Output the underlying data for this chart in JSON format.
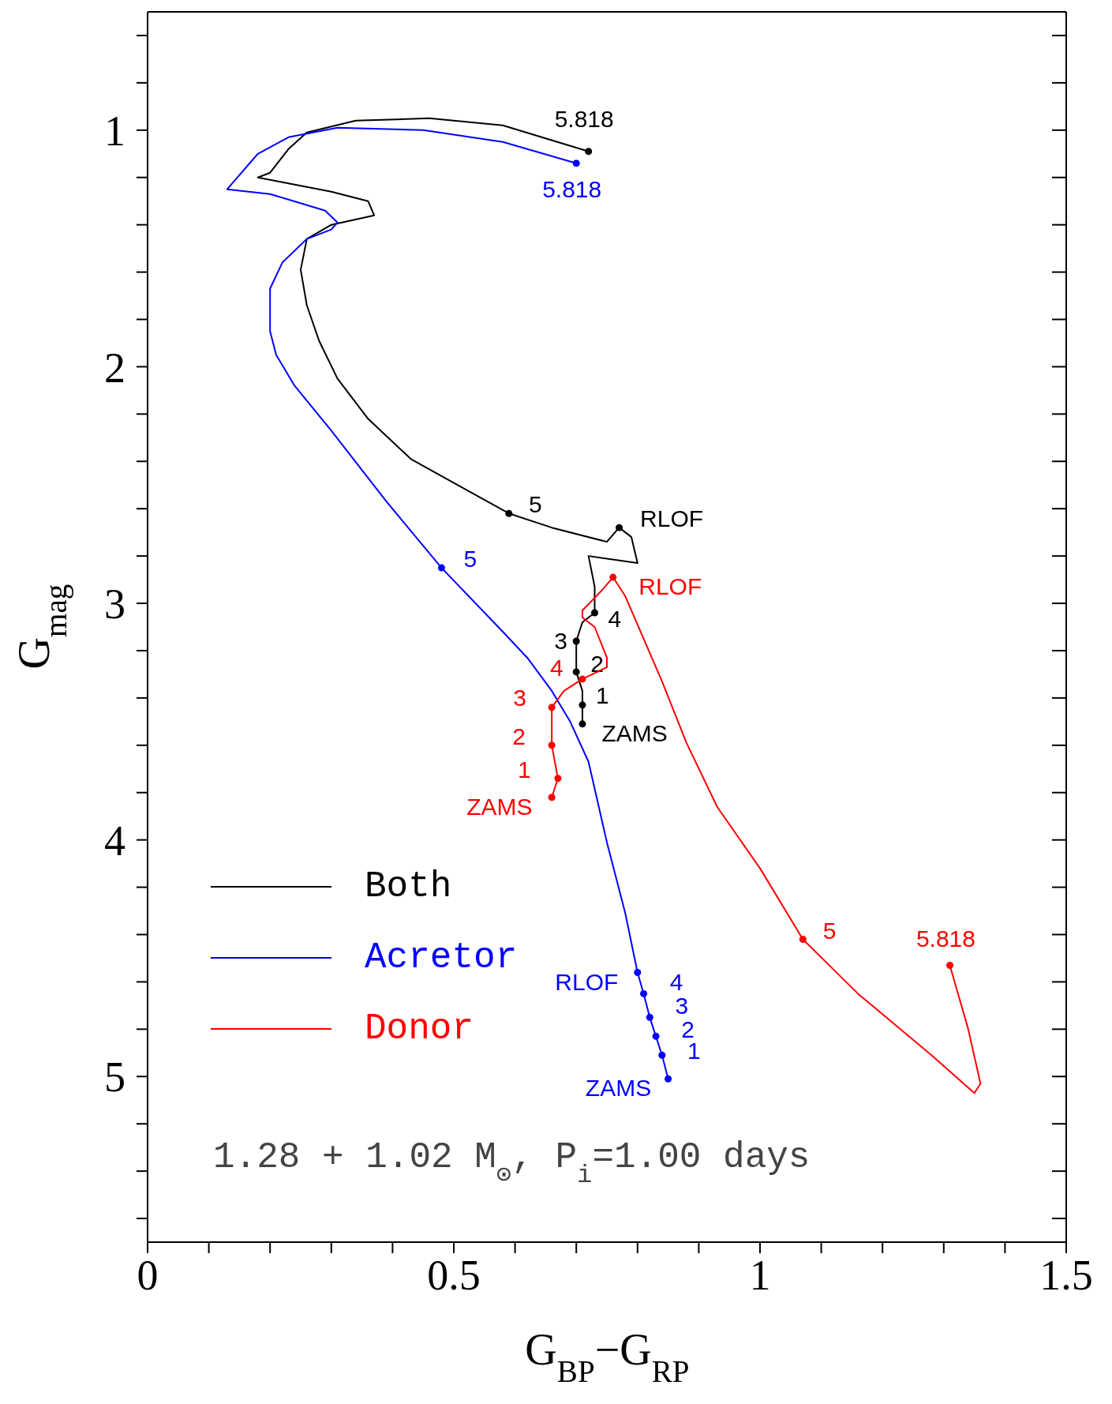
{
  "chart_data": {
    "type": "line",
    "xlabel": "G$_{BP}$−G$_{RP}$",
    "ylabel": "G$_{mag}$",
    "xlim": [
      0,
      1.5
    ],
    "ylim": [
      5.7,
      0.5
    ],
    "xticks": [
      0,
      {
        "value": 0.1,
        "label": null
      },
      {
        "value": 0.2,
        "label": null
      },
      {
        "value": 0.3,
        "label": null
      },
      {
        "value": 0.4,
        "label": null
      },
      0.5,
      {
        "value": 0.6,
        "label": null
      },
      {
        "value": 0.7,
        "label": null
      },
      {
        "value": 0.8,
        "label": null
      },
      {
        "value": 0.9,
        "label": null
      },
      1,
      {
        "value": 1.1,
        "label": null
      },
      {
        "value": 1.2,
        "label": null
      },
      {
        "value": 1.3,
        "label": null
      },
      {
        "value": 1.4,
        "label": null
      },
      1.5
    ],
    "yticks": [
      {
        "value": 0.6,
        "label": null
      },
      {
        "value": 0.8,
        "label": null
      },
      1,
      {
        "value": 1.2,
        "label": null
      },
      {
        "value": 1.4,
        "label": null
      },
      {
        "value": 1.6,
        "label": null
      },
      {
        "value": 1.8,
        "label": null
      },
      2,
      {
        "value": 2.2,
        "label": null
      },
      {
        "value": 2.4,
        "label": null
      },
      {
        "value": 2.6,
        "label": null
      },
      {
        "value": 2.8,
        "label": null
      },
      3,
      {
        "value": 3.2,
        "label": null
      },
      {
        "value": 3.4,
        "label": null
      },
      {
        "value": 3.6,
        "label": null
      },
      {
        "value": 3.8,
        "label": null
      },
      4,
      {
        "value": 4.2,
        "label": null
      },
      {
        "value": 4.4,
        "label": null
      },
      {
        "value": 4.6,
        "label": null
      },
      {
        "value": 4.8,
        "label": null
      },
      5,
      {
        "value": 5.2,
        "label": null
      },
      {
        "value": 5.4,
        "label": null
      },
      {
        "value": 5.6,
        "label": null
      }
    ],
    "legend": "bottom left",
    "series": [
      {
        "name": "Both",
        "color": "#000000",
        "x": [
          0.71,
          0.71,
          0.71,
          0.7,
          0.7,
          0.71,
          0.73,
          0.73,
          0.72,
          0.8,
          0.79,
          0.77,
          0.75,
          0.66,
          0.59,
          0.52,
          0.43,
          0.36,
          0.31,
          0.28,
          0.26,
          0.25,
          0.26,
          0.3,
          0.37,
          0.36,
          0.3,
          0.18,
          0.2,
          0.23,
          0.26,
          0.34,
          0.46,
          0.58,
          0.72
        ],
        "values": [
          3.51,
          3.43,
          3.37,
          3.29,
          3.16,
          3.08,
          3.04,
          2.93,
          2.8,
          2.83,
          2.72,
          2.68,
          2.74,
          2.68,
          2.62,
          2.52,
          2.39,
          2.22,
          2.05,
          1.89,
          1.74,
          1.59,
          1.46,
          1.4,
          1.36,
          1.3,
          1.26,
          1.2,
          1.18,
          1.08,
          1.01,
          0.96,
          0.95,
          0.98,
          1.09
        ]
      },
      {
        "name": "Acretor",
        "color": "#0000ff",
        "x": [
          0.85,
          0.84,
          0.83,
          0.82,
          0.81,
          0.8,
          0.78,
          0.75,
          0.72,
          0.69,
          0.66,
          0.62,
          0.58,
          0.48,
          0.39,
          0.3,
          0.24,
          0.21,
          0.2,
          0.2,
          0.22,
          0.26,
          0.3,
          0.31,
          0.29,
          0.2,
          0.13,
          0.18,
          0.23,
          0.31,
          0.45,
          0.58,
          0.7
        ],
        "values": [
          5.01,
          4.91,
          4.83,
          4.75,
          4.65,
          4.56,
          4.31,
          4.01,
          3.67,
          3.5,
          3.37,
          3.23,
          3.12,
          2.85,
          2.57,
          2.27,
          2.08,
          1.95,
          1.85,
          1.67,
          1.56,
          1.46,
          1.42,
          1.39,
          1.34,
          1.27,
          1.25,
          1.1,
          1.03,
          0.99,
          1.0,
          1.05,
          1.14
        ]
      },
      {
        "name": "Donor",
        "color": "#ff0000",
        "x": [
          0.66,
          0.67,
          0.66,
          0.66,
          0.68,
          0.71,
          0.75,
          0.75,
          0.73,
          0.71,
          0.71,
          0.74,
          0.76,
          0.78,
          0.84,
          0.88,
          0.93,
          1.0,
          1.07,
          1.16,
          1.28,
          1.35,
          1.36,
          1.34,
          1.31
        ],
        "values": [
          3.82,
          3.74,
          3.6,
          3.44,
          3.37,
          3.32,
          3.27,
          3.23,
          3.1,
          3.06,
          3.03,
          2.95,
          2.89,
          2.97,
          3.33,
          3.59,
          3.86,
          4.12,
          4.42,
          4.65,
          4.91,
          5.07,
          5.03,
          4.8,
          4.53
        ]
      },
      {
        "type": "scatter",
        "marker": "circle",
        "color": "#000000",
        "x": [
          0.72,
          0.59,
          0.77,
          0.73,
          0.7,
          0.7,
          0.71,
          0.71
        ],
        "values": [
          1.09,
          2.62,
          2.68,
          3.04,
          3.16,
          3.29,
          3.43,
          3.51
        ]
      },
      {
        "type": "scatter",
        "marker": "circle",
        "color": "#0000ff",
        "x": [
          0.7,
          0.48,
          0.8,
          0.81,
          0.82,
          0.83,
          0.84,
          0.85
        ],
        "values": [
          1.14,
          2.85,
          4.56,
          4.65,
          4.75,
          4.83,
          4.91,
          5.01
        ]
      },
      {
        "type": "scatter",
        "marker": "circle",
        "color": "#ff0000",
        "x": [
          1.31,
          1.07,
          0.76,
          0.71,
          0.66,
          0.66,
          0.67,
          0.66
        ],
        "values": [
          4.53,
          4.42,
          2.89,
          3.32,
          3.44,
          3.6,
          3.74,
          3.82
        ]
      }
    ],
    "annotations": [
      {
        "text": "5.818",
        "x": 0.72,
        "y": 1.09
      },
      {
        "text": "5",
        "x": 0.59,
        "y": 2.62
      },
      {
        "text": "RLOF",
        "x": 0.77,
        "y": 2.68
      },
      {
        "text": "4",
        "x": 0.73,
        "y": 3.04
      },
      {
        "text": "3",
        "x": 0.7,
        "y": 3.16
      },
      {
        "text": "2",
        "x": 0.7,
        "y": 3.29
      },
      {
        "text": "1",
        "x": 0.71,
        "y": 3.43
      },
      {
        "text": "ZAMS",
        "x": 0.71,
        "y": 3.51
      },
      {
        "text": "5.818",
        "x": 0.7,
        "y": 1.14
      },
      {
        "text": "5",
        "x": 0.48,
        "y": 2.85
      },
      {
        "text": "RLOF",
        "x": 0.8,
        "y": 4.56
      },
      {
        "text": "4",
        "x": 0.81,
        "y": 4.65
      },
      {
        "text": "3",
        "x": 0.82,
        "y": 4.75
      },
      {
        "text": "2",
        "x": 0.83,
        "y": 4.83
      },
      {
        "text": "1",
        "x": 0.84,
        "y": 4.91
      },
      {
        "text": "ZAMS",
        "x": 0.85,
        "y": 5.01
      },
      {
        "text": "5.818",
        "x": 1.31,
        "y": 4.53
      },
      {
        "text": "5",
        "x": 1.07,
        "y": 4.42
      },
      {
        "text": "RLOF",
        "x": 0.76,
        "y": 2.89
      },
      {
        "text": "4",
        "x": 0.71,
        "y": 3.32
      },
      {
        "text": "3",
        "x": 0.66,
        "y": 3.44
      },
      {
        "text": "2",
        "x": 0.66,
        "y": 3.6
      },
      {
        "text": "1",
        "x": 0.67,
        "y": 3.74
      },
      {
        "text": "ZAMS",
        "x": 0.66,
        "y": 3.82
      },
      "1.28 + 1.02 M$_{⊙}$, P$_{i}$=1.00 days"
    ]
  }
}
